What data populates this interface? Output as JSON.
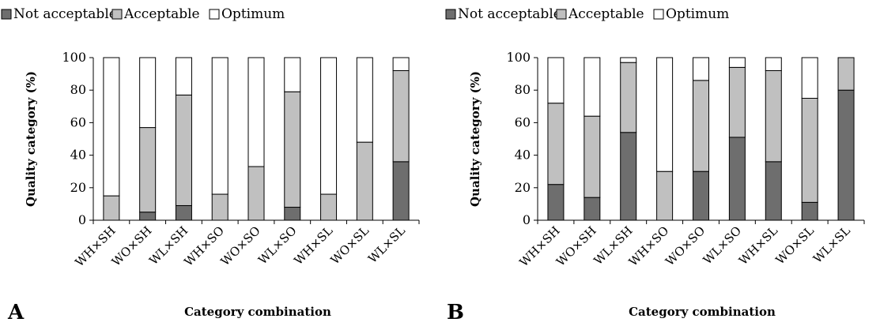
{
  "colors": {
    "not_acceptable": "#6e6e6e",
    "acceptable": "#c0c0c0",
    "optimum": "#ffffff",
    "stroke": "#000000"
  },
  "chart_data": [
    {
      "type": "bar",
      "stacked": true,
      "panel_label": "A",
      "xlabel": "Category combination",
      "ylabel": "Quality category (%)",
      "ylim": [
        0,
        100
      ],
      "yticks": [
        0,
        20,
        40,
        60,
        80,
        100
      ],
      "grid": false,
      "legend_position": "top",
      "categories": [
        "WH×SH",
        "WO×SH",
        "WL×SH",
        "WH×SO",
        "WO×SO",
        "WL×SO",
        "WH×SL",
        "WO×SL",
        "WL×SL"
      ],
      "series": [
        {
          "name": "Not acceptable",
          "values": [
            0,
            5,
            9,
            0,
            0,
            8,
            0,
            0,
            36
          ]
        },
        {
          "name": "Acceptable",
          "values": [
            15,
            52,
            68,
            16,
            33,
            71,
            16,
            48,
            56
          ]
        },
        {
          "name": "Optimum",
          "values": [
            85,
            43,
            23,
            84,
            67,
            21,
            84,
            52,
            8
          ]
        }
      ]
    },
    {
      "type": "bar",
      "stacked": true,
      "panel_label": "B",
      "xlabel": "Category combination",
      "ylabel": "Quality category (%)",
      "ylim": [
        0,
        100
      ],
      "yticks": [
        0,
        20,
        40,
        60,
        80,
        100
      ],
      "grid": false,
      "legend_position": "top",
      "categories": [
        "WH×SH",
        "WO×SH",
        "WL×SH",
        "WH×SO",
        "WO×SO",
        "WL×SO",
        "WH×SL",
        "WO×SL",
        "WL×SL"
      ],
      "series": [
        {
          "name": "Not acceptable",
          "values": [
            22,
            14,
            54,
            0,
            30,
            51,
            36,
            11,
            80
          ]
        },
        {
          "name": "Acceptable",
          "values": [
            50,
            50,
            43,
            30,
            56,
            43,
            56,
            64,
            20
          ]
        },
        {
          "name": "Optimum",
          "values": [
            28,
            36,
            3,
            70,
            14,
            6,
            8,
            25,
            0
          ]
        }
      ]
    }
  ]
}
